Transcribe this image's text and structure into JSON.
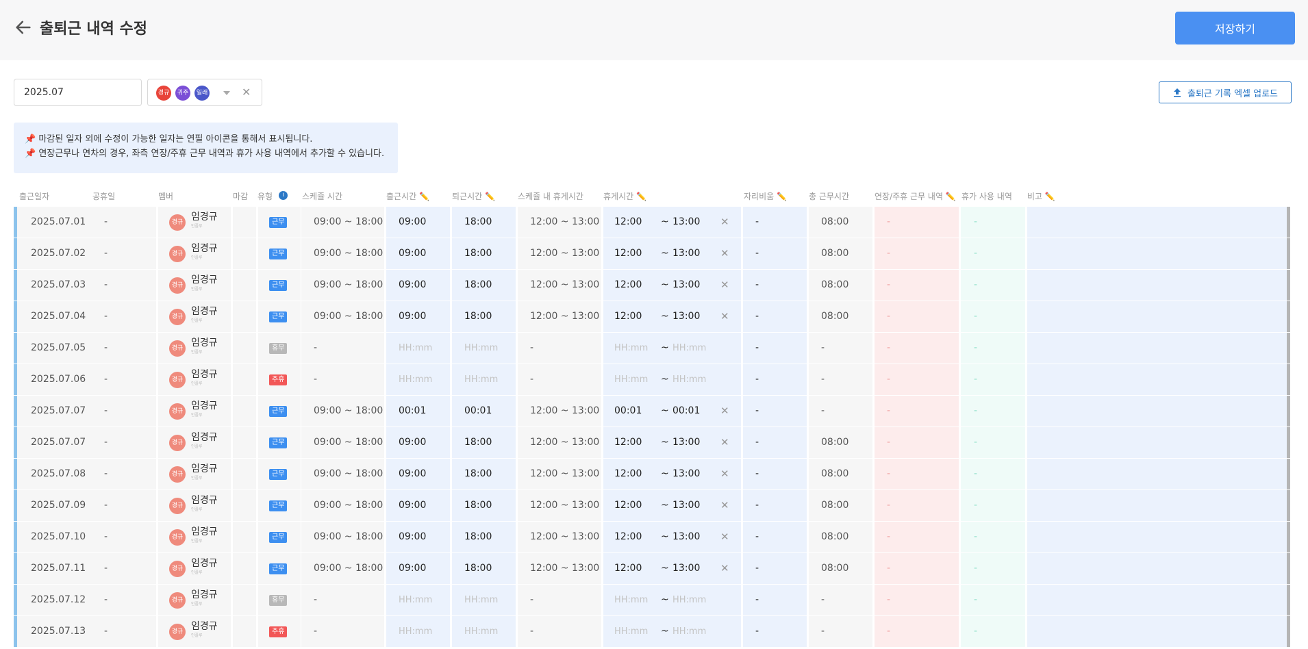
{
  "header": {
    "title": "출퇴근 내역 수정",
    "save_label": "저장하기"
  },
  "filters": {
    "date_value": "2025.07",
    "member_chips": [
      "경규",
      "귀주",
      "일래"
    ],
    "upload_label": "출퇴근 기록 엑셀 업로드"
  },
  "notice": {
    "line1": "📌 마감된 일자 외에 수정이 가능한 일자는 연필 아이콘을 통해서 표시됩니다.",
    "line2": "📌 연장근무나 연차의 경우, 좌측 연장/주휴 근무 내역과 휴가 사용 내역에서 추가할 수 있습니다."
  },
  "columns": [
    "출근일자",
    "공휴일",
    "멤버",
    "마감",
    "유형",
    "스케쥴 시간",
    "출근시간 ✏️",
    "퇴근시간 ✏️",
    "스케쥴 내 휴게시간",
    "휴게시간 ✏️",
    "자리비움 ✏️",
    "총 근무시간",
    "연장/주휴 근무 내역 ✏️",
    "휴가 사용 내역",
    "비고 ✏️"
  ],
  "placeholder_time": "HH:mm",
  "member_sub": "인플루",
  "tilde": "~",
  "dash": "-",
  "rows": [
    {
      "date": "2025.07.01",
      "holiday": "-",
      "avatar": "경규",
      "member": "임경규",
      "type": "근무",
      "badge": "work",
      "schedule": "09:00 ~ 18:00",
      "in": "09:00",
      "out": "18:00",
      "sched_break": "12:00 ~ 13:00",
      "brk_s": "12:00",
      "brk_e": "13:00",
      "clear": "✕",
      "away": "-",
      "total": "08:00",
      "ot": "-",
      "leave": "-"
    },
    {
      "date": "2025.07.02",
      "holiday": "-",
      "avatar": "경규",
      "member": "임경규",
      "type": "근무",
      "badge": "work",
      "schedule": "09:00 ~ 18:00",
      "in": "09:00",
      "out": "18:00",
      "sched_break": "12:00 ~ 13:00",
      "brk_s": "12:00",
      "brk_e": "13:00",
      "clear": "✕",
      "away": "-",
      "total": "08:00",
      "ot": "-",
      "leave": "-"
    },
    {
      "date": "2025.07.03",
      "holiday": "-",
      "avatar": "경규",
      "member": "임경규",
      "type": "근무",
      "badge": "work",
      "schedule": "09:00 ~ 18:00",
      "in": "09:00",
      "out": "18:00",
      "sched_break": "12:00 ~ 13:00",
      "brk_s": "12:00",
      "brk_e": "13:00",
      "clear": "✕",
      "away": "-",
      "total": "08:00",
      "ot": "-",
      "leave": "-"
    },
    {
      "date": "2025.07.04",
      "holiday": "-",
      "avatar": "경규",
      "member": "임경규",
      "type": "근무",
      "badge": "work",
      "schedule": "09:00 ~ 18:00",
      "in": "09:00",
      "out": "18:00",
      "sched_break": "12:00 ~ 13:00",
      "brk_s": "12:00",
      "brk_e": "13:00",
      "clear": "✕",
      "away": "-",
      "total": "08:00",
      "ot": "-",
      "leave": "-"
    },
    {
      "date": "2025.07.05",
      "holiday": "-",
      "avatar": "경규",
      "member": "임경규",
      "type": "휴무",
      "badge": "off",
      "schedule": "-",
      "in": "",
      "out": "",
      "sched_break": "-",
      "brk_s": "",
      "brk_e": "",
      "clear": "",
      "away": "-",
      "total": "-",
      "ot": "-",
      "leave": "-"
    },
    {
      "date": "2025.07.06",
      "holiday": "-",
      "avatar": "경규",
      "member": "임경규",
      "type": "주휴",
      "badge": "hol",
      "schedule": "-",
      "in": "",
      "out": "",
      "sched_break": "-",
      "brk_s": "",
      "brk_e": "",
      "clear": "",
      "away": "-",
      "total": "-",
      "ot": "-",
      "leave": "-"
    },
    {
      "date": "2025.07.07",
      "holiday": "-",
      "avatar": "경규",
      "member": "임경규",
      "type": "근무",
      "badge": "work",
      "schedule": "09:00 ~ 18:00",
      "in": "00:01",
      "out": "00:01",
      "sched_break": "12:00 ~ 13:00",
      "brk_s": "00:01",
      "brk_e": "00:01",
      "clear": "✕",
      "away": "-",
      "total": "-",
      "ot": "-",
      "leave": "-"
    },
    {
      "date": "2025.07.07",
      "holiday": "-",
      "avatar": "경규",
      "member": "임경규",
      "type": "근무",
      "badge": "work",
      "schedule": "09:00 ~ 18:00",
      "in": "09:00",
      "out": "18:00",
      "sched_break": "12:00 ~ 13:00",
      "brk_s": "12:00",
      "brk_e": "13:00",
      "clear": "✕",
      "away": "-",
      "total": "08:00",
      "ot": "-",
      "leave": "-"
    },
    {
      "date": "2025.07.08",
      "holiday": "-",
      "avatar": "경규",
      "member": "임경규",
      "type": "근무",
      "badge": "work",
      "schedule": "09:00 ~ 18:00",
      "in": "09:00",
      "out": "18:00",
      "sched_break": "12:00 ~ 13:00",
      "brk_s": "12:00",
      "brk_e": "13:00",
      "clear": "✕",
      "away": "-",
      "total": "08:00",
      "ot": "-",
      "leave": "-"
    },
    {
      "date": "2025.07.09",
      "holiday": "-",
      "avatar": "경규",
      "member": "임경규",
      "type": "근무",
      "badge": "work",
      "schedule": "09:00 ~ 18:00",
      "in": "09:00",
      "out": "18:00",
      "sched_break": "12:00 ~ 13:00",
      "brk_s": "12:00",
      "brk_e": "13:00",
      "clear": "✕",
      "away": "-",
      "total": "08:00",
      "ot": "-",
      "leave": "-"
    },
    {
      "date": "2025.07.10",
      "holiday": "-",
      "avatar": "경규",
      "member": "임경규",
      "type": "근무",
      "badge": "work",
      "schedule": "09:00 ~ 18:00",
      "in": "09:00",
      "out": "18:00",
      "sched_break": "12:00 ~ 13:00",
      "brk_s": "12:00",
      "brk_e": "13:00",
      "clear": "✕",
      "away": "-",
      "total": "08:00",
      "ot": "-",
      "leave": "-"
    },
    {
      "date": "2025.07.11",
      "holiday": "-",
      "avatar": "경규",
      "member": "임경규",
      "type": "근무",
      "badge": "work",
      "schedule": "09:00 ~ 18:00",
      "in": "09:00",
      "out": "18:00",
      "sched_break": "12:00 ~ 13:00",
      "brk_s": "12:00",
      "brk_e": "13:00",
      "clear": "✕",
      "away": "-",
      "total": "08:00",
      "ot": "-",
      "leave": "-"
    },
    {
      "date": "2025.07.12",
      "holiday": "-",
      "avatar": "경규",
      "member": "임경규",
      "type": "휴무",
      "badge": "off",
      "schedule": "-",
      "in": "",
      "out": "",
      "sched_break": "-",
      "brk_s": "",
      "brk_e": "",
      "clear": "",
      "away": "-",
      "total": "-",
      "ot": "-",
      "leave": "-"
    },
    {
      "date": "2025.07.13",
      "holiday": "-",
      "avatar": "경규",
      "member": "임경규",
      "type": "주휴",
      "badge": "hol",
      "schedule": "-",
      "in": "",
      "out": "",
      "sched_break": "-",
      "brk_s": "",
      "brk_e": "",
      "clear": "",
      "away": "-",
      "total": "-",
      "ot": "-",
      "leave": "-"
    }
  ]
}
